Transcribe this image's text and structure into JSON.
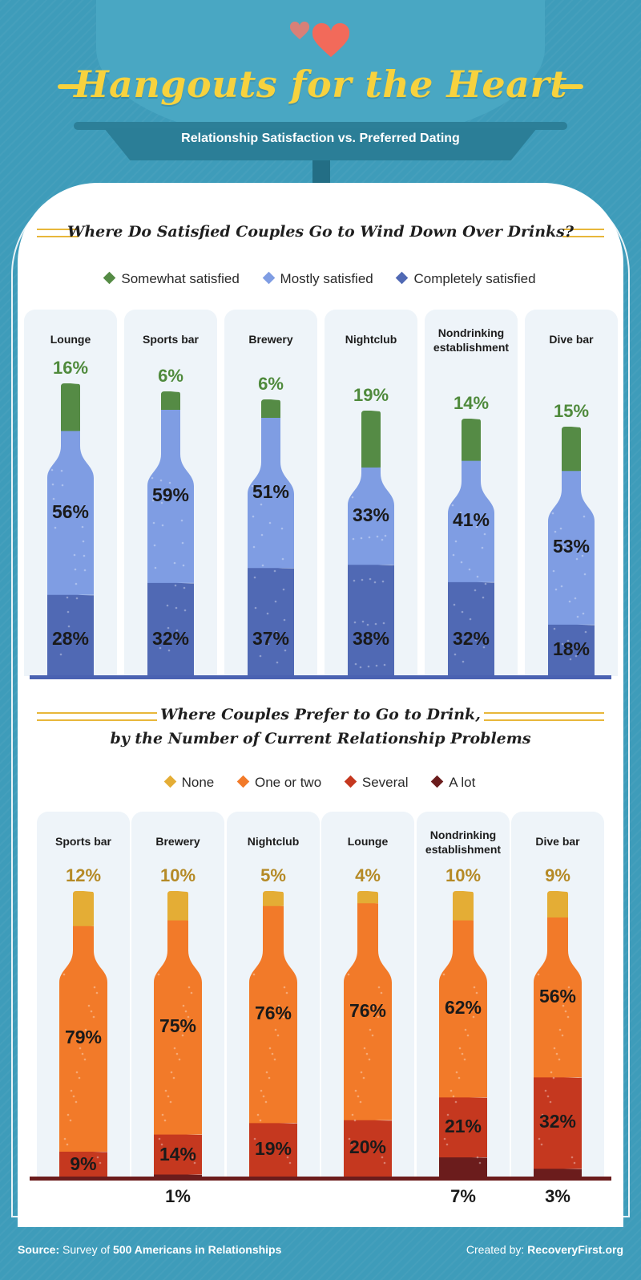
{
  "header": {
    "title": "Hangouts for the Heart",
    "subtitle": "Relationship Satisfaction vs. Preferred Dating"
  },
  "colors": {
    "background": "#3e9cba",
    "title": "#f7d23e",
    "somewhat": "#558b45",
    "mostly": "#7f9de3",
    "completely": "#5069b4",
    "none": "#e4ad35",
    "one_or_two": "#f27a29",
    "several": "#c5381f",
    "a_lot": "#6b1c1c"
  },
  "chart_data": [
    {
      "type": "bar",
      "title": "Where Do Satisfied Couples Go to Wind Down Over Drinks?",
      "categories": [
        "Lounge",
        "Sports bar",
        "Brewery",
        "Nightclub",
        "Nondrinking establishment",
        "Dive bar"
      ],
      "series": [
        {
          "name": "Completely satisfied",
          "values": [
            28,
            32,
            37,
            38,
            32,
            18
          ]
        },
        {
          "name": "Mostly satisfied",
          "values": [
            56,
            59,
            51,
            33,
            41,
            53
          ]
        },
        {
          "name": "Somewhat satisfied",
          "values": [
            16,
            6,
            6,
            19,
            14,
            15
          ]
        }
      ],
      "legend": [
        "Somewhat satisfied",
        "Mostly satisfied",
        "Completely satisfied"
      ],
      "unit": "%",
      "stacked": true
    },
    {
      "type": "bar",
      "title": "Where Couples Prefer to Go to Drink, by the Number of Current Relationship Problems",
      "categories": [
        "Sports bar",
        "Brewery",
        "Nightclub",
        "Lounge",
        "Nondrinking establishment",
        "Dive bar"
      ],
      "series": [
        {
          "name": "A lot",
          "values": [
            0,
            1,
            0,
            0,
            7,
            3
          ]
        },
        {
          "name": "Several",
          "values": [
            9,
            14,
            19,
            20,
            21,
            32
          ]
        },
        {
          "name": "One or two",
          "values": [
            79,
            75,
            76,
            76,
            62,
            56
          ]
        },
        {
          "name": "None",
          "values": [
            12,
            10,
            5,
            4,
            10,
            9
          ]
        }
      ],
      "legend": [
        "None",
        "One or two",
        "Several",
        "A lot"
      ],
      "unit": "%",
      "stacked": true
    }
  ],
  "chart1": {
    "title": "Where Do Satisfied Couples Go to Wind Down Over Drinks?",
    "legend": [
      "Somewhat satisfied",
      "Mostly satisfied",
      "Completely satisfied"
    ]
  },
  "chart2": {
    "title_line1": "Where Couples Prefer to Go to Drink,",
    "title_line2": "by the Number of Current Relationship Problems",
    "legend": [
      "None",
      "One or two",
      "Several",
      "A lot"
    ]
  },
  "footer": {
    "source_label": "Source:",
    "source_text": "Survey of",
    "source_bold": "500 Americans in Relationships",
    "credit_label": "Created by:",
    "credit_bold": "RecoveryFirst.org"
  }
}
